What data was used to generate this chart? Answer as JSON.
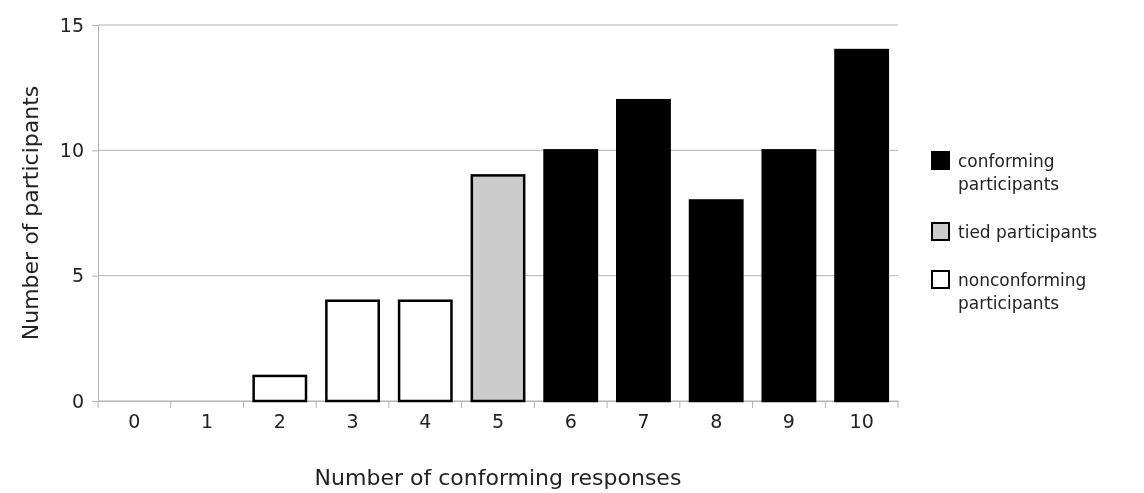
{
  "chart_data": {
    "type": "bar",
    "xlabel": "Number of conforming responses",
    "ylabel": "Number of participants",
    "categories": [
      "0",
      "1",
      "2",
      "3",
      "4",
      "5",
      "6",
      "7",
      "8",
      "9",
      "10"
    ],
    "series": [
      {
        "name": "conforming participants",
        "color": "#000000",
        "values": [
          null,
          null,
          null,
          null,
          null,
          null,
          10,
          12,
          8,
          10,
          14
        ]
      },
      {
        "name": "tied participants",
        "color": "#cccccc",
        "values": [
          null,
          null,
          null,
          null,
          null,
          9,
          null,
          null,
          null,
          null,
          null
        ]
      },
      {
        "name": "nonconforming participants",
        "color": "#ffffff",
        "values": [
          0,
          0,
          1,
          4,
          4,
          null,
          null,
          null,
          null,
          null,
          null
        ]
      }
    ],
    "ylim": [
      0,
      15
    ],
    "yticks": [
      0,
      5,
      10,
      15
    ],
    "grid": "y",
    "legend": "right"
  }
}
